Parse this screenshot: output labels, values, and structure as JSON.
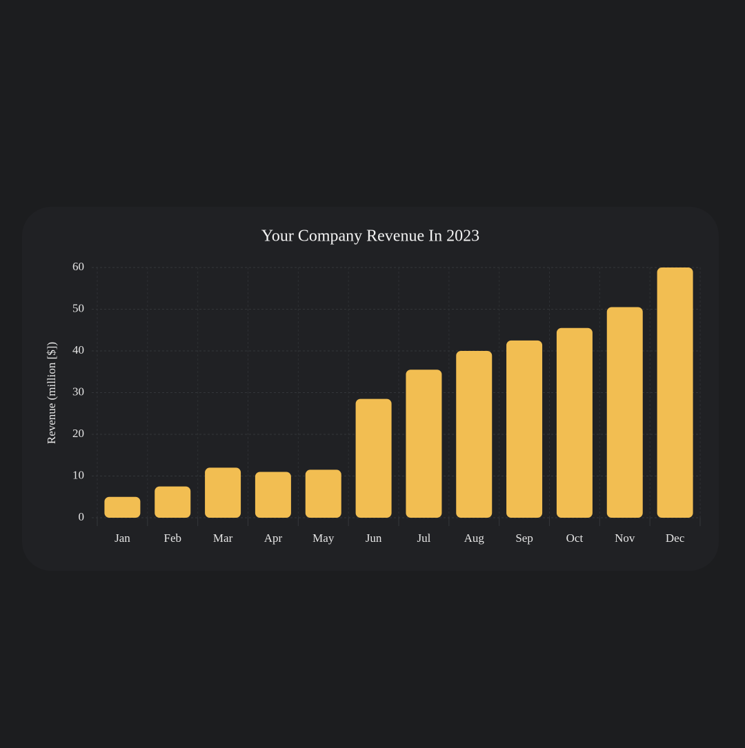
{
  "chart_data": {
    "type": "bar",
    "title": "Your Company Revenue In 2023",
    "y_label": "Revenue (million [$])",
    "categories": [
      "Jan",
      "Feb",
      "Mar",
      "Apr",
      "May",
      "Jun",
      "Jul",
      "Aug",
      "Sep",
      "Oct",
      "Nov",
      "Dec"
    ],
    "values": [
      5,
      7.5,
      12,
      11,
      11.5,
      28.5,
      35.5,
      40,
      42.5,
      45.5,
      50.5,
      60
    ],
    "color": "#f2be52",
    "ylim": [
      0,
      60
    ],
    "yticks": [
      0,
      10,
      20,
      30,
      40,
      50,
      60
    ],
    "grid": true
  }
}
